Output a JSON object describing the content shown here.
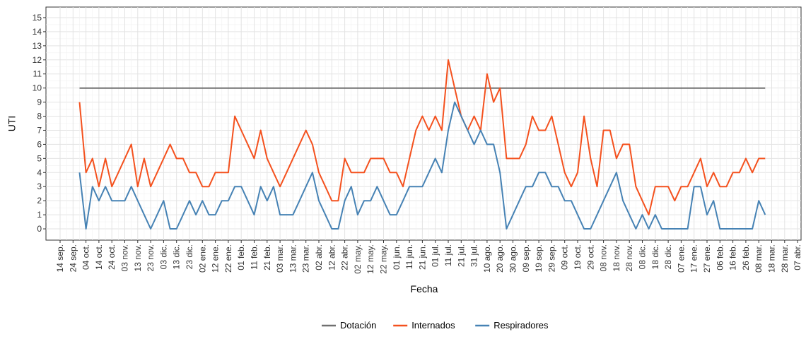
{
  "chart_data": {
    "type": "line",
    "x_label": "Fecha",
    "y_label": "UTI",
    "x": [
      "14 sep.",
      null,
      "24 sep.",
      null,
      "04 oct.",
      null,
      "14 oct.",
      null,
      "24 oct.",
      null,
      "03 nov.",
      null,
      "13 nov.",
      null,
      "23 nov.",
      null,
      "03 dic.",
      null,
      "13 dic.",
      null,
      "23 dic.",
      null,
      "02 ene.",
      null,
      "12 ene.",
      null,
      "22 ene.",
      null,
      "01 feb.",
      null,
      "11 feb.",
      null,
      "21 feb.",
      null,
      "03 mar.",
      null,
      "13 mar.",
      null,
      "23 mar.",
      null,
      "02 abr.",
      null,
      "12 abr.",
      null,
      "22 abr.",
      null,
      "02 may.",
      null,
      "12 may.",
      null,
      "22 may.",
      null,
      "01 jun.",
      null,
      "11 jun.",
      null,
      "21 jun.",
      null,
      "01 jul.",
      null,
      "11 jul.",
      null,
      "21 jul.",
      null,
      "31 jul.",
      null,
      "10 ago.",
      null,
      "20 ago.",
      null,
      "30 ago.",
      null,
      "09 sep.",
      null,
      "19 sep.",
      null,
      "29 sep.",
      null,
      "09 oct.",
      null,
      "19 oct.",
      null,
      "29 oct.",
      null,
      "08 nov.",
      null,
      "18 nov.",
      null,
      "28 nov.",
      null,
      "08 dic.",
      null,
      "18 dic.",
      null,
      "28 dic.",
      null,
      "07 ene.",
      null,
      "17 ene.",
      null,
      "27 ene.",
      null,
      "06 feb.",
      null,
      "16 feb.",
      null,
      "26 feb.",
      null,
      "08 mar.",
      null,
      "18 mar.",
      null,
      "28 mar.",
      null,
      "07 abr."
    ],
    "series": [
      {
        "name": "Dotación",
        "color": "#707070",
        "values": [
          null,
          null,
          null,
          10,
          10,
          10,
          10,
          10,
          10,
          10,
          10,
          10,
          10,
          10,
          10,
          10,
          10,
          10,
          10,
          10,
          10,
          10,
          10,
          10,
          10,
          10,
          10,
          10,
          10,
          10,
          10,
          10,
          10,
          10,
          10,
          10,
          10,
          10,
          10,
          10,
          10,
          10,
          10,
          10,
          10,
          10,
          10,
          10,
          10,
          10,
          10,
          10,
          10,
          10,
          10,
          10,
          10,
          10,
          10,
          10,
          10,
          10,
          10,
          10,
          10,
          10,
          10,
          10,
          10,
          10,
          10,
          10,
          10,
          10,
          10,
          10,
          10,
          10,
          10,
          10,
          10,
          10,
          10,
          10,
          10,
          10,
          10,
          10,
          10,
          10,
          10,
          10,
          10,
          10,
          10,
          10,
          10,
          10,
          10,
          10,
          10,
          10,
          10,
          10,
          10,
          10,
          10,
          10,
          10,
          10,
          null,
          null,
          null,
          null,
          null
        ]
      },
      {
        "name": "Internados",
        "color": "#f4511e",
        "values": [
          null,
          null,
          null,
          9,
          4,
          5,
          3,
          5,
          3,
          4,
          5,
          6,
          3,
          5,
          3,
          4,
          5,
          6,
          5,
          5,
          4,
          4,
          3,
          3,
          4,
          4,
          4,
          8,
          7,
          6,
          5,
          7,
          5,
          4,
          3,
          4,
          5,
          6,
          7,
          6,
          4,
          3,
          2,
          2,
          5,
          4,
          4,
          4,
          5,
          5,
          5,
          4,
          4,
          3,
          5,
          7,
          8,
          7,
          8,
          7,
          12,
          10,
          8,
          7,
          8,
          7,
          11,
          9,
          10,
          5,
          5,
          5,
          6,
          8,
          7,
          7,
          8,
          6,
          4,
          3,
          4,
          8,
          5,
          3,
          7,
          7,
          5,
          6,
          6,
          3,
          2,
          1,
          3,
          3,
          3,
          2,
          3,
          3,
          4,
          5,
          3,
          4,
          3,
          3,
          4,
          4,
          5,
          4,
          5,
          5,
          null,
          null,
          null,
          null,
          null
        ]
      },
      {
        "name": "Respiradores",
        "color": "#4682b4",
        "values": [
          null,
          null,
          null,
          4,
          0,
          3,
          2,
          3,
          2,
          2,
          2,
          3,
          2,
          1,
          0,
          1,
          2,
          0,
          0,
          1,
          2,
          1,
          2,
          1,
          1,
          2,
          2,
          3,
          3,
          2,
          1,
          3,
          2,
          3,
          1,
          1,
          1,
          2,
          3,
          4,
          2,
          1,
          0,
          0,
          2,
          3,
          1,
          2,
          2,
          3,
          2,
          1,
          1,
          2,
          3,
          3,
          3,
          4,
          5,
          4,
          7,
          9,
          8,
          7,
          6,
          7,
          6,
          6,
          4,
          0,
          1,
          2,
          3,
          3,
          4,
          4,
          3,
          3,
          2,
          2,
          1,
          0,
          0,
          1,
          2,
          3,
          4,
          2,
          1,
          0,
          1,
          0,
          1,
          0,
          0,
          0,
          0,
          0,
          3,
          3,
          1,
          2,
          0,
          0,
          0,
          0,
          0,
          0,
          2,
          1,
          null,
          null,
          null,
          null,
          null
        ]
      }
    ],
    "ylim": [
      -0.8,
      15.75
    ],
    "yticks": [
      0,
      1,
      2,
      3,
      4,
      5,
      6,
      7,
      8,
      9,
      10,
      11,
      12,
      13,
      14,
      15
    ],
    "grid": true,
    "legend": "bottom"
  }
}
